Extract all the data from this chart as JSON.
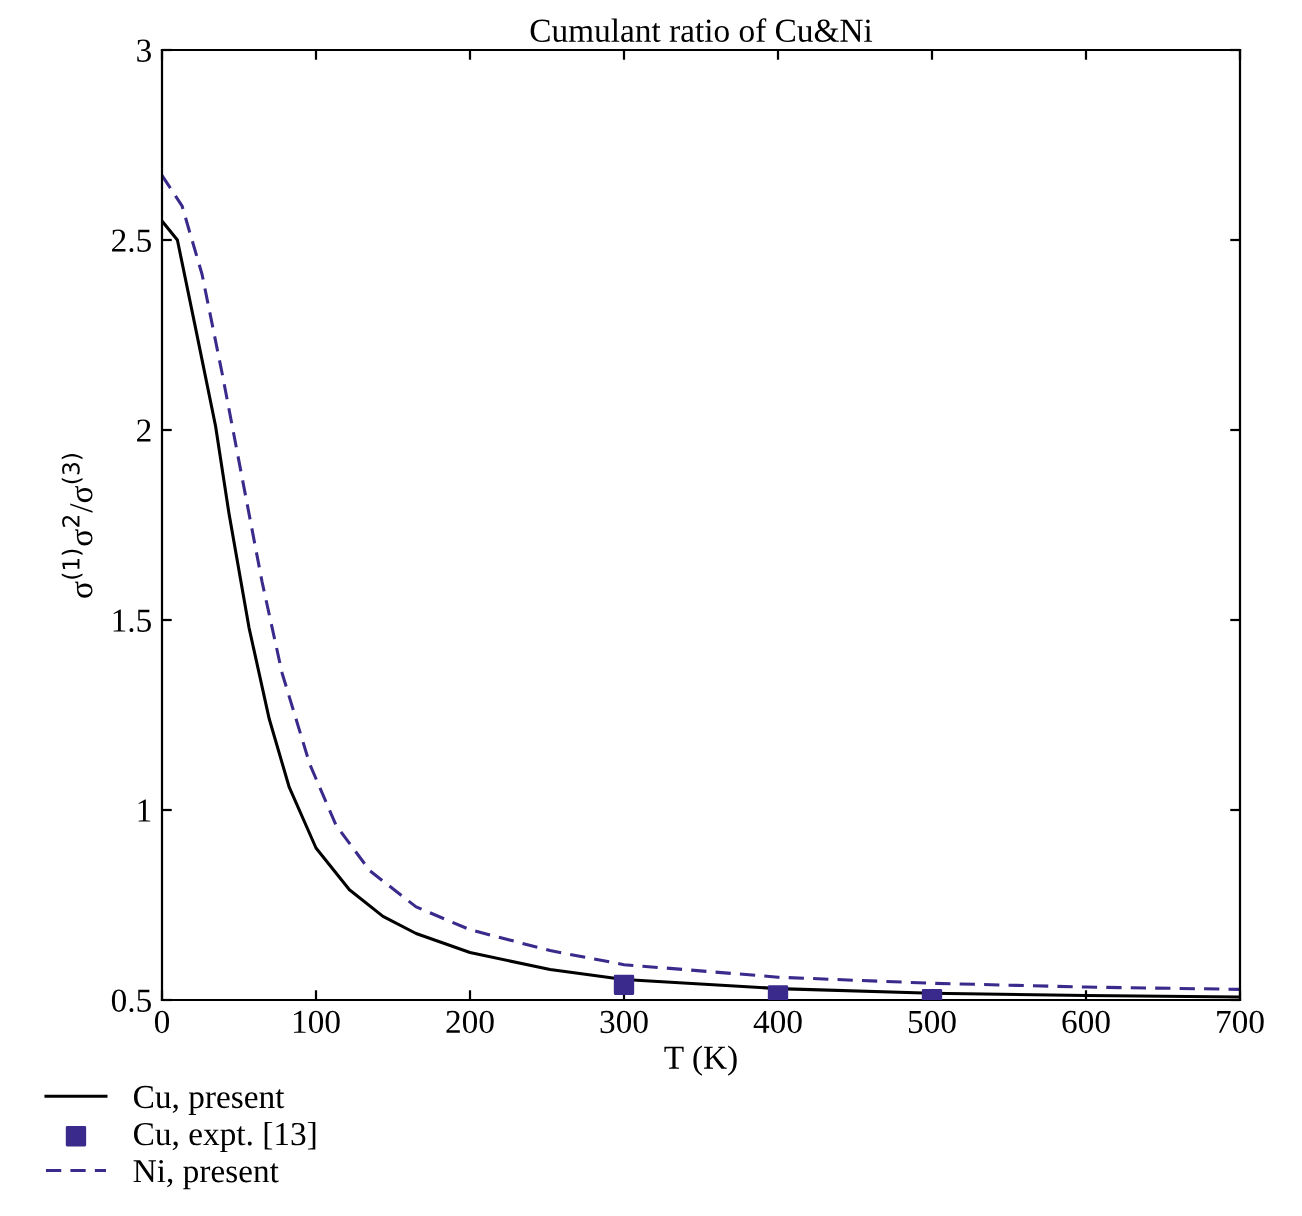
{
  "chart_data": {
    "type": "line",
    "title": "Cumulant ratio of Cu&Ni",
    "xlabel": "T (K)",
    "ylabel": "σ$^{(1)}$σ$^{2}$/σ$^{(3)}$",
    "xlim": [
      0,
      700
    ],
    "ylim": [
      0.5,
      3
    ],
    "xticks": [
      0,
      100,
      200,
      300,
      400,
      500,
      600,
      700
    ],
    "yticks": [
      0.5,
      1,
      1.5,
      2,
      2.5,
      3
    ],
    "grid": false,
    "legend": "bottom left",
    "series": [
      {
        "name": "Cu, present",
        "color": "#000000",
        "line_style": "solid",
        "marker": "none",
        "x": [
          0,
          10,
          21.7,
          34.8,
          43.5,
          56.5,
          69.6,
          82.6,
          100,
          121.7,
          143.5,
          165,
          200,
          252,
          300,
          400,
          500,
          600,
          700
        ],
        "values": [
          2.55,
          2.5,
          2.27,
          2.01,
          1.78,
          1.48,
          1.24,
          1.06,
          0.9,
          0.79,
          0.72,
          0.675,
          0.625,
          0.58,
          0.554,
          0.53,
          0.518,
          0.512,
          0.508
        ]
      },
      {
        "name": "Cu, expt. [13]",
        "type": "scatter",
        "color": "#3a2a8c",
        "marker": "square",
        "x": [
          300,
          400,
          500
        ],
        "values": [
          0.54,
          0.512,
          0.502
        ]
      },
      {
        "name": "Ni, present",
        "color": "#3a2a8c",
        "line_style": "dashed",
        "marker": "none",
        "x": [
          0,
          13,
          26,
          39,
          52,
          65,
          78,
          96,
          113,
          135,
          165,
          200,
          252,
          300,
          400,
          500,
          600,
          700
        ],
        "values": [
          2.67,
          2.59,
          2.41,
          2.15,
          1.875,
          1.6,
          1.36,
          1.12,
          0.96,
          0.84,
          0.745,
          0.685,
          0.63,
          0.593,
          0.56,
          0.544,
          0.534,
          0.528
        ]
      }
    ]
  }
}
